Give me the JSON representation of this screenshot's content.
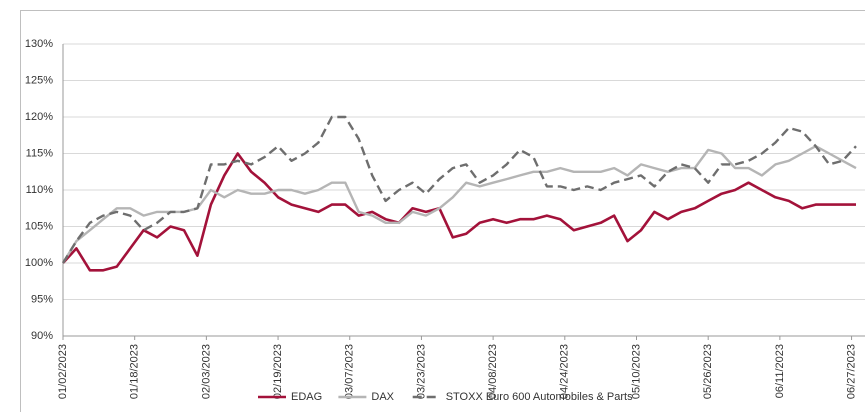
{
  "chart_data": {
    "type": "line",
    "x": [
      "01/02/2023",
      "01/05/2023",
      "01/08/2023",
      "01/11/2023",
      "01/14/2023",
      "01/17/2023",
      "01/20/2023",
      "01/23/2023",
      "01/26/2023",
      "01/29/2023",
      "02/01/2023",
      "02/04/2023",
      "02/07/2023",
      "02/10/2023",
      "02/13/2023",
      "02/16/2023",
      "02/19/2023",
      "02/22/2023",
      "02/25/2023",
      "02/28/2023",
      "03/03/2023",
      "03/06/2023",
      "03/09/2023",
      "03/12/2023",
      "03/15/2023",
      "03/18/2023",
      "03/21/2023",
      "03/24/2023",
      "03/27/2023",
      "03/30/2023",
      "04/02/2023",
      "04/05/2023",
      "04/08/2023",
      "04/11/2023",
      "04/14/2023",
      "04/17/2023",
      "04/20/2023",
      "04/23/2023",
      "04/26/2023",
      "04/29/2023",
      "05/02/2023",
      "05/05/2023",
      "05/08/2023",
      "05/11/2023",
      "05/14/2023",
      "05/17/2023",
      "05/20/2023",
      "05/23/2023",
      "05/26/2023",
      "05/29/2023",
      "06/01/2023",
      "06/04/2023",
      "06/07/2023",
      "06/10/2023",
      "06/13/2023",
      "06/16/2023",
      "06/19/2023",
      "06/22/2023",
      "06/25/2023",
      "06/28/2023"
    ],
    "series": [
      {
        "name": "EDAG",
        "color": "#a3123a",
        "dash": false,
        "width": 2.6,
        "values": [
          100,
          102,
          99,
          99,
          99.5,
          102,
          104.5,
          103.5,
          105,
          104.5,
          101,
          108,
          112,
          115,
          112.5,
          111,
          109,
          108,
          107.5,
          107,
          108,
          108,
          106.5,
          107,
          106,
          105.5,
          107.5,
          107,
          107.5,
          103.5,
          104,
          105.5,
          106,
          105.5,
          106,
          106,
          106.5,
          106,
          104.5,
          105,
          105.5,
          106.5,
          103,
          104.5,
          107,
          106,
          107,
          107.5,
          108.5,
          109.5,
          110,
          111,
          110,
          109,
          108.5,
          107.5,
          108,
          108,
          108,
          108
        ]
      },
      {
        "name": "DAX",
        "color": "#b5b5b5",
        "dash": false,
        "width": 2.4,
        "values": [
          100,
          103,
          104.5,
          106,
          107.5,
          107.5,
          106.5,
          107,
          107,
          107,
          107.5,
          110,
          109,
          110,
          109.5,
          109.5,
          110,
          110,
          109.5,
          110,
          111,
          111,
          107,
          106.5,
          105.5,
          105.5,
          107,
          106.5,
          107.5,
          109,
          111,
          110.5,
          111,
          111.5,
          112,
          112.5,
          112.5,
          113,
          112.5,
          112.5,
          112.5,
          113,
          112,
          113.5,
          113,
          112.5,
          113,
          113,
          115.5,
          115,
          113,
          113,
          112,
          113.5,
          114,
          115,
          116,
          115,
          114,
          113
        ]
      },
      {
        "name": "STOXX Euro 600 Automobiles & Parts",
        "color": "#6e6e6e",
        "dash": true,
        "width": 2.4,
        "values": [
          100,
          103,
          105.5,
          106.5,
          107,
          106.5,
          104.5,
          105.5,
          107,
          107,
          107.5,
          113.5,
          113.5,
          114,
          113.5,
          114.5,
          116,
          114,
          115,
          116.5,
          120,
          120,
          117,
          112,
          108.5,
          110,
          111,
          109.5,
          111.5,
          113,
          113.5,
          111,
          112,
          113.5,
          115.5,
          114.5,
          110.5,
          110.5,
          110,
          110.5,
          110,
          111,
          111.5,
          112,
          110.5,
          112.5,
          113.5,
          113,
          111,
          113.5,
          113.5,
          114,
          115,
          116.5,
          118.5,
          118,
          116,
          113.5,
          114,
          116
        ]
      }
    ],
    "xlim": [
      "01/02/2023",
      "06/30/2023"
    ],
    "xticks": [
      "01/02/2023",
      "01/18/2023",
      "02/03/2023",
      "02/19/2023",
      "03/07/2023",
      "03/23/2023",
      "04/08/2023",
      "04/24/2023",
      "05/10/2023",
      "05/26/2023",
      "06/11/2023",
      "06/27/2023"
    ],
    "ylim": [
      90,
      130
    ],
    "yticks": [
      {
        "value": 90,
        "label": "90%"
      },
      {
        "value": 95,
        "label": "95%"
      },
      {
        "value": 100,
        "label": "100%"
      },
      {
        "value": 105,
        "label": "105%"
      },
      {
        "value": 110,
        "label": "110%"
      },
      {
        "value": 115,
        "label": "115%"
      },
      {
        "value": 120,
        "label": "120%"
      },
      {
        "value": 125,
        "label": "125%"
      },
      {
        "value": 130,
        "label": "130%"
      }
    ],
    "grid": true,
    "legend": "bottom"
  }
}
